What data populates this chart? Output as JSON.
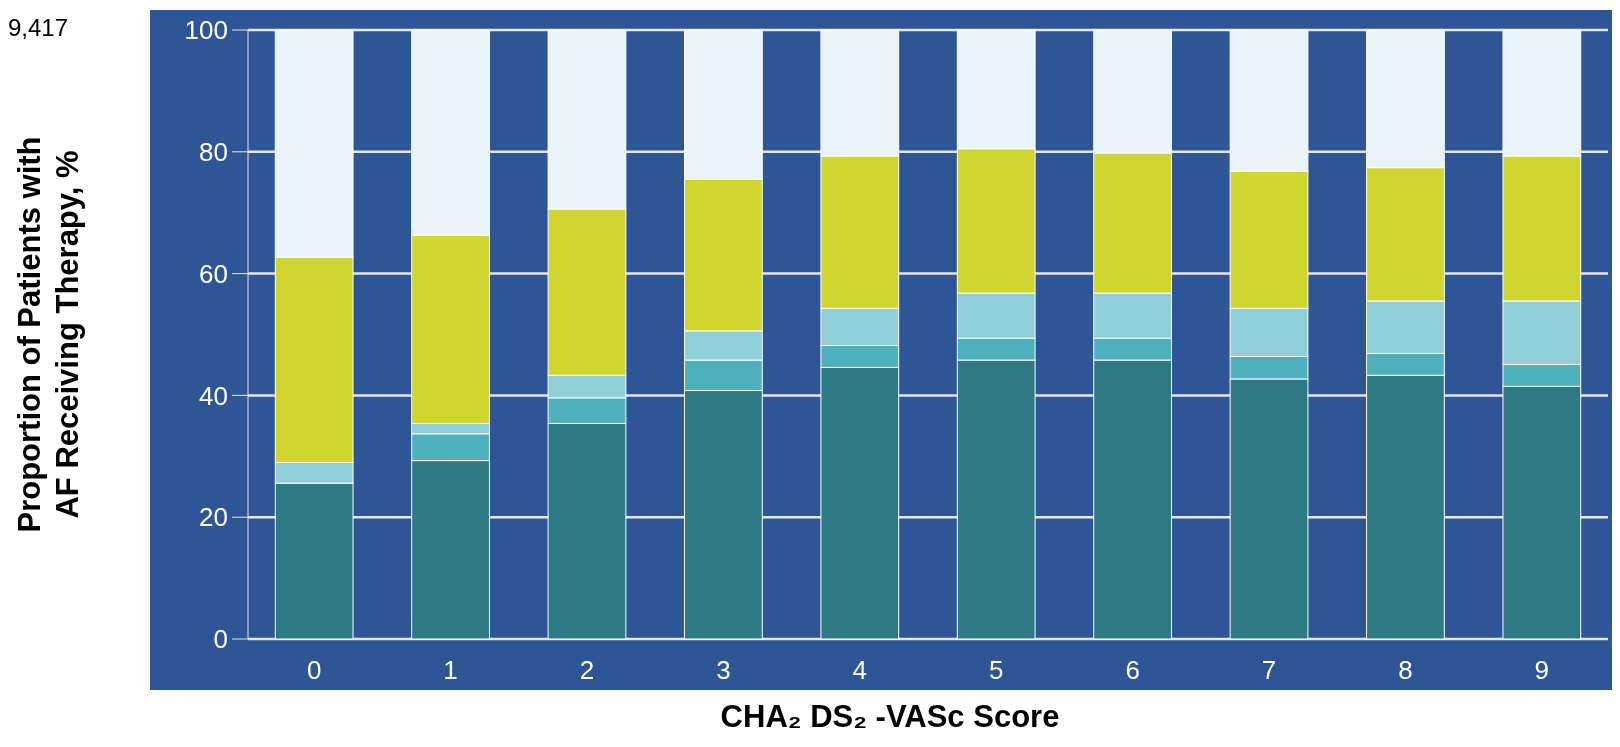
{
  "chart_data": {
    "type": "bar",
    "stacked": true,
    "xlabel": "CHA₂ DS₂ -VASc Score",
    "ylabel": "Proportion of Patients with\nAF Receiving Therapy, %",
    "annotations": [
      "9,417"
    ],
    "categories": [
      "0",
      "1",
      "2",
      "3",
      "4",
      "5",
      "6",
      "7",
      "8",
      "9"
    ],
    "series": [
      {
        "color": "#2e7a84",
        "values": [
          25.6,
          29.3,
          35.4,
          40.8,
          44.6,
          45.8,
          45.8,
          42.7,
          43.3,
          41.5
        ]
      },
      {
        "color": "#4eb0bd",
        "values": [
          0,
          4.4,
          4.2,
          5.0,
          3.6,
          3.6,
          3.6,
          3.7,
          3.6,
          3.6
        ]
      },
      {
        "color": "#8fcfd8",
        "values": [
          3.4,
          1.7,
          3.7,
          4.8,
          6.1,
          7.4,
          7.4,
          7.9,
          8.6,
          10.4
        ]
      },
      {
        "color": "#d0d52f",
        "values": [
          33.7,
          30.9,
          27.3,
          24.9,
          25.0,
          23.7,
          23.0,
          22.5,
          21.9,
          23.8
        ]
      },
      {
        "color": "#e8f4f8",
        "values": [
          37.3,
          33.7,
          29.4,
          24.5,
          20.7,
          19.5,
          20.2,
          23.2,
          22.6,
          20.7
        ]
      }
    ],
    "ylim": [
      0,
      100
    ],
    "yticks": [
      0,
      20,
      40,
      60,
      80,
      100
    ],
    "grid": "y"
  }
}
